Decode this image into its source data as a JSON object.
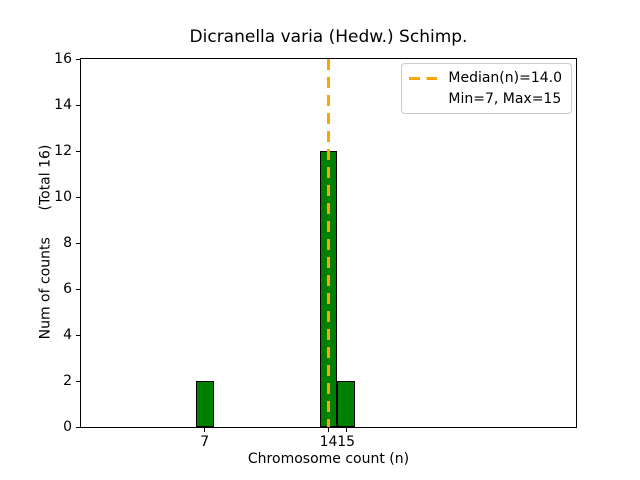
{
  "chart_data": {
    "type": "bar",
    "title": "Dicranella varia (Hedw.) Schimp.",
    "xlabel": "Chromosome count (n)",
    "ylabel": "Num of counts      (Total 16)",
    "categories": [
      7,
      14,
      15
    ],
    "values": [
      2,
      12,
      2
    ],
    "total_counts": 16,
    "bar_width": 1,
    "bar_color": "#008000",
    "bar_edge_color": "#000000",
    "xlim": [
      0,
      28
    ],
    "ylim": [
      0,
      16
    ],
    "xticks": [
      7,
      14,
      15
    ],
    "yticks": [
      0,
      2,
      4,
      6,
      8,
      10,
      12,
      14,
      16
    ],
    "grid": false,
    "median_line": {
      "x": 14.0,
      "color": "#FFA500",
      "style": "dashed",
      "label": "Median(n)=14.0"
    },
    "stats": {
      "median": 14.0,
      "min": 7,
      "max": 15
    },
    "legend": {
      "position": "upper right",
      "entries": [
        {
          "label": "Median(n)=14.0",
          "handle": "orange-dashed-line"
        },
        {
          "label": "Min=7, Max=15",
          "handle": "none"
        }
      ]
    }
  }
}
